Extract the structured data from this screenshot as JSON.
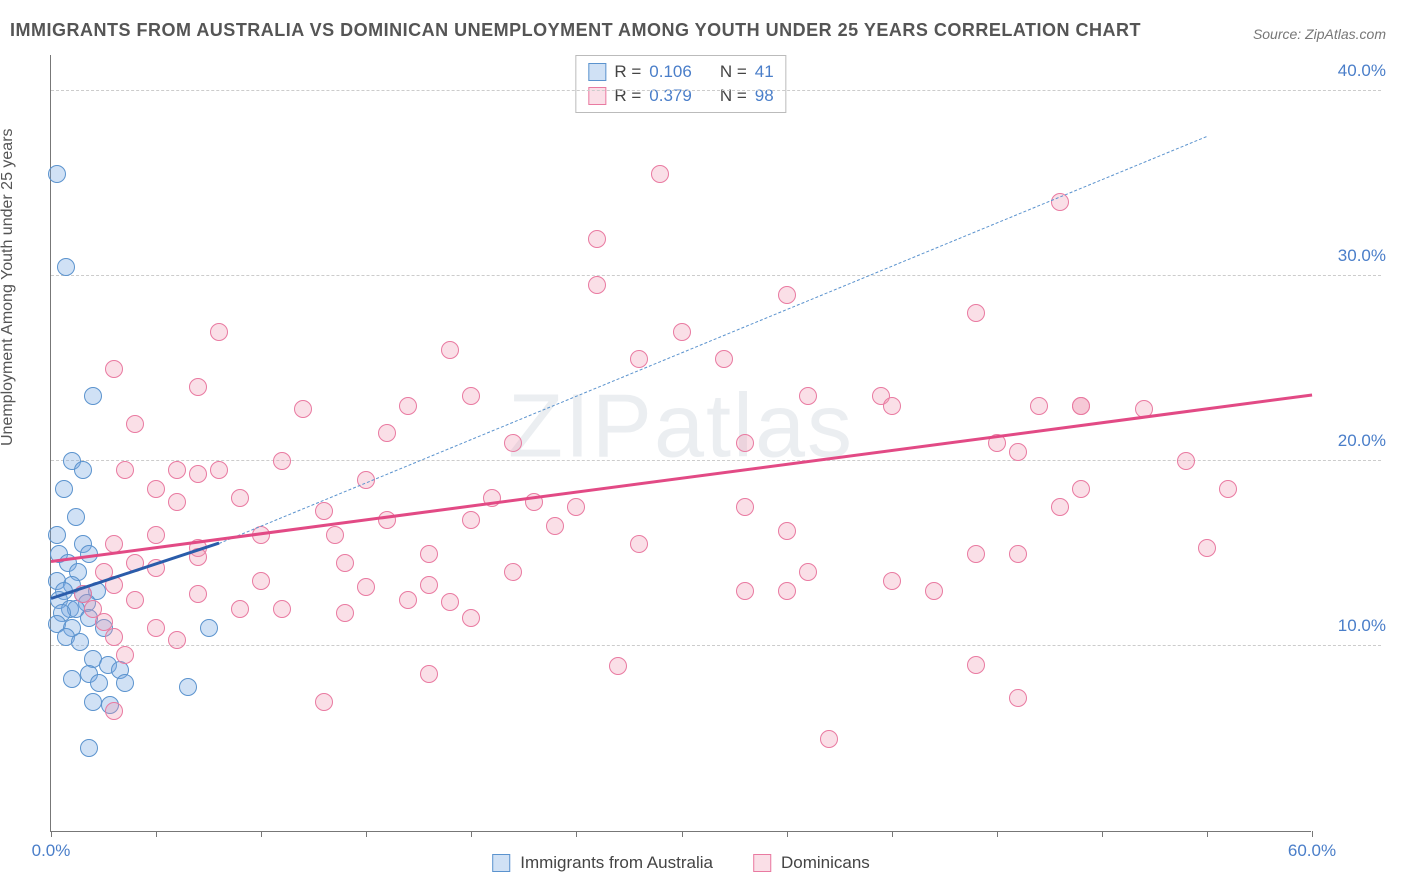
{
  "title": "IMMIGRANTS FROM AUSTRALIA VS DOMINICAN UNEMPLOYMENT AMONG YOUTH UNDER 25 YEARS CORRELATION CHART",
  "source_label": "Source: ",
  "source_name": "ZipAtlas.com",
  "ylabel": "Unemployment Among Youth under 25 years",
  "watermark": "ZIPatlas",
  "chart": {
    "type": "scatter",
    "background_color": "#ffffff",
    "grid_color": "#cccccc",
    "axis_color": "#777777",
    "tick_color": "#4a7ec9",
    "xlim": [
      0,
      60
    ],
    "ylim": [
      0,
      42
    ],
    "xticks": [
      0,
      60
    ],
    "xtick_labels": [
      "0.0%",
      "60.0%"
    ],
    "xtick_minor": [
      5,
      10,
      15,
      20,
      25,
      30,
      35,
      40,
      45,
      50,
      55
    ],
    "yticks": [
      10,
      20,
      30,
      40
    ],
    "ytick_labels": [
      "10.0%",
      "20.0%",
      "30.0%",
      "40.0%"
    ],
    "marker_radius": 9,
    "series": [
      {
        "name": "Immigrants from Australia",
        "fill": "rgba(120,170,225,0.35)",
        "stroke": "#5b93ce",
        "trend": {
          "x1": 0,
          "y1": 12.5,
          "x2": 8,
          "y2": 15.5,
          "dashed": false,
          "color": "#2a5caa",
          "width": 3
        },
        "trend_ext": {
          "x1": 8,
          "y1": 15.5,
          "x2": 55,
          "y2": 37.5,
          "dashed": true,
          "color": "#5b93ce",
          "width": 1.5
        },
        "R": "0.106",
        "N": "41",
        "points": [
          [
            0.3,
            35.5
          ],
          [
            0.7,
            30.5
          ],
          [
            2.0,
            23.5
          ],
          [
            1.0,
            20.0
          ],
          [
            1.5,
            19.5
          ],
          [
            0.6,
            18.5
          ],
          [
            1.2,
            17.0
          ],
          [
            0.3,
            16.0
          ],
          [
            1.5,
            15.5
          ],
          [
            0.4,
            15.0
          ],
          [
            1.8,
            15.0
          ],
          [
            0.8,
            14.5
          ],
          [
            1.3,
            14.0
          ],
          [
            0.3,
            13.5
          ],
          [
            1.0,
            13.3
          ],
          [
            2.2,
            13.0
          ],
          [
            0.6,
            13.0
          ],
          [
            1.5,
            12.8
          ],
          [
            0.4,
            12.5
          ],
          [
            1.7,
            12.3
          ],
          [
            0.9,
            12.0
          ],
          [
            1.2,
            12.0
          ],
          [
            0.5,
            11.8
          ],
          [
            1.8,
            11.5
          ],
          [
            0.3,
            11.2
          ],
          [
            1.0,
            11.0
          ],
          [
            2.5,
            11.0
          ],
          [
            7.5,
            11.0
          ],
          [
            0.7,
            10.5
          ],
          [
            1.4,
            10.2
          ],
          [
            2.0,
            9.3
          ],
          [
            2.7,
            9.0
          ],
          [
            3.3,
            8.7
          ],
          [
            1.8,
            8.5
          ],
          [
            1.0,
            8.2
          ],
          [
            2.3,
            8.0
          ],
          [
            3.5,
            8.0
          ],
          [
            6.5,
            7.8
          ],
          [
            2.0,
            7.0
          ],
          [
            2.8,
            6.8
          ],
          [
            1.8,
            4.5
          ]
        ]
      },
      {
        "name": "Dominicans",
        "fill": "rgba(240,150,175,0.3)",
        "stroke": "#e97aa1",
        "trend": {
          "x1": 0,
          "y1": 14.5,
          "x2": 60,
          "y2": 23.5,
          "dashed": false,
          "color": "#e24a85",
          "width": 3
        },
        "R": "0.379",
        "N": "98",
        "points": [
          [
            29,
            35.5
          ],
          [
            48,
            34.0
          ],
          [
            26,
            32.0
          ],
          [
            26,
            29.5
          ],
          [
            35,
            29.0
          ],
          [
            44,
            28.0
          ],
          [
            8,
            27.0
          ],
          [
            30,
            27.0
          ],
          [
            19,
            26.0
          ],
          [
            28,
            25.5
          ],
          [
            32,
            25.5
          ],
          [
            3,
            25.0
          ],
          [
            7,
            24.0
          ],
          [
            20,
            23.5
          ],
          [
            36,
            23.5
          ],
          [
            39.5,
            23.5
          ],
          [
            49,
            23.0
          ],
          [
            17,
            23.0
          ],
          [
            40,
            23.0
          ],
          [
            12,
            22.8
          ],
          [
            47,
            23.0
          ],
          [
            49,
            23.0
          ],
          [
            52,
            22.8
          ],
          [
            4,
            22.0
          ],
          [
            16,
            21.5
          ],
          [
            22,
            21.0
          ],
          [
            33,
            21.0
          ],
          [
            45,
            21.0
          ],
          [
            46,
            20.5
          ],
          [
            54,
            20.0
          ],
          [
            11,
            20.0
          ],
          [
            3.5,
            19.5
          ],
          [
            6,
            19.5
          ],
          [
            7,
            19.3
          ],
          [
            8,
            19.5
          ],
          [
            15,
            19.0
          ],
          [
            5,
            18.5
          ],
          [
            9,
            18.0
          ],
          [
            49,
            18.5
          ],
          [
            56,
            18.5
          ],
          [
            6,
            17.8
          ],
          [
            21,
            18.0
          ],
          [
            23,
            17.8
          ],
          [
            25,
            17.5
          ],
          [
            33,
            17.5
          ],
          [
            13,
            17.3
          ],
          [
            16,
            16.8
          ],
          [
            20,
            16.8
          ],
          [
            24,
            16.5
          ],
          [
            48,
            17.5
          ],
          [
            5,
            16.0
          ],
          [
            10,
            16.0
          ],
          [
            13.5,
            16.0
          ],
          [
            35,
            16.2
          ],
          [
            3,
            15.5
          ],
          [
            7,
            15.3
          ],
          [
            18,
            15.0
          ],
          [
            28,
            15.5
          ],
          [
            55,
            15.3
          ],
          [
            44,
            15.0
          ],
          [
            46,
            15.0
          ],
          [
            4,
            14.5
          ],
          [
            14,
            14.5
          ],
          [
            2.5,
            14.0
          ],
          [
            5,
            14.2
          ],
          [
            22,
            14.0
          ],
          [
            36,
            14.0
          ],
          [
            40,
            13.5
          ],
          [
            3,
            13.3
          ],
          [
            10,
            13.5
          ],
          [
            15,
            13.2
          ],
          [
            18,
            13.3
          ],
          [
            33,
            13.0
          ],
          [
            35,
            13.0
          ],
          [
            42,
            13.0
          ],
          [
            1.5,
            12.8
          ],
          [
            4,
            12.5
          ],
          [
            7,
            12.8
          ],
          [
            17,
            12.5
          ],
          [
            19,
            12.4
          ],
          [
            2,
            12.0
          ],
          [
            9,
            12.0
          ],
          [
            11,
            12.0
          ],
          [
            14,
            11.8
          ],
          [
            20,
            11.5
          ],
          [
            2.5,
            11.3
          ],
          [
            5,
            11.0
          ],
          [
            3,
            10.5
          ],
          [
            6,
            10.3
          ],
          [
            3.5,
            9.5
          ],
          [
            27,
            8.9
          ],
          [
            44,
            9.0
          ],
          [
            18,
            8.5
          ],
          [
            13,
            7.0
          ],
          [
            3,
            6.5
          ],
          [
            37,
            5.0
          ],
          [
            46,
            7.2
          ],
          [
            7,
            14.8
          ]
        ]
      }
    ]
  },
  "legend_top": {
    "r_label": "R =",
    "n_label": "N ="
  },
  "legend_bottom_items": [
    "Immigrants from Australia",
    "Dominicans"
  ]
}
